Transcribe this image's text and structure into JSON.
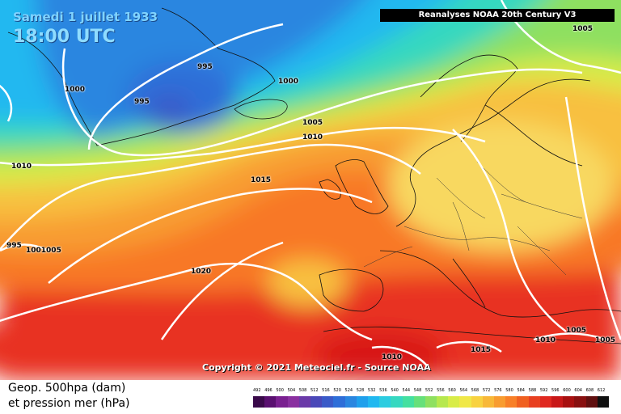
{
  "header": {
    "date": "Samedi 1 juillet 1933",
    "time": "18:00 UTC",
    "source": "Reanalyses NOAA 20th Century V3"
  },
  "copyright": "Copyright © 2021 Meteociel.fr - Source NOAA",
  "legend": {
    "line1": "Geop. 500hpa (dam)",
    "line2": "et pression mer (hPa)",
    "ticks": [
      "492",
      "496",
      "500",
      "504",
      "508",
      "512",
      "516",
      "520",
      "524",
      "528",
      "532",
      "536",
      "540",
      "544",
      "548",
      "552",
      "556",
      "560",
      "564",
      "568",
      "572",
      "576",
      "580",
      "584",
      "588",
      "592",
      "596",
      "600",
      "604",
      "608",
      "612"
    ],
    "colors": [
      "#3a0a4a",
      "#5a1070",
      "#7a2090",
      "#8a30a0",
      "#6a3aa8",
      "#4a48b8",
      "#3a5ac8",
      "#2e6ed8",
      "#2a86e0",
      "#1fa0ec",
      "#20b8f0",
      "#2ccce0",
      "#36d8c0",
      "#44e0a0",
      "#66e07a",
      "#8ee060",
      "#b6e84e",
      "#d8ec48",
      "#f0e848",
      "#f8d240",
      "#f8b838",
      "#f89c30",
      "#f88028",
      "#f06020",
      "#e84020",
      "#e02820",
      "#c81818",
      "#a81010",
      "#881010",
      "#601010",
      "#101010"
    ]
  },
  "isobars": [
    {
      "label": "995"
    },
    {
      "label": "995"
    },
    {
      "label": "1000"
    },
    {
      "label": "1000"
    },
    {
      "label": "1005"
    },
    {
      "label": "1010"
    },
    {
      "label": "1015"
    },
    {
      "label": "1020"
    },
    {
      "label": "1010"
    },
    {
      "label": "995"
    },
    {
      "label": "1001005"
    },
    {
      "label": "1005"
    },
    {
      "label": "1010"
    },
    {
      "label": "1015"
    },
    {
      "label": "1005"
    },
    {
      "label": "1010"
    },
    {
      "label": "1005"
    }
  ]
}
